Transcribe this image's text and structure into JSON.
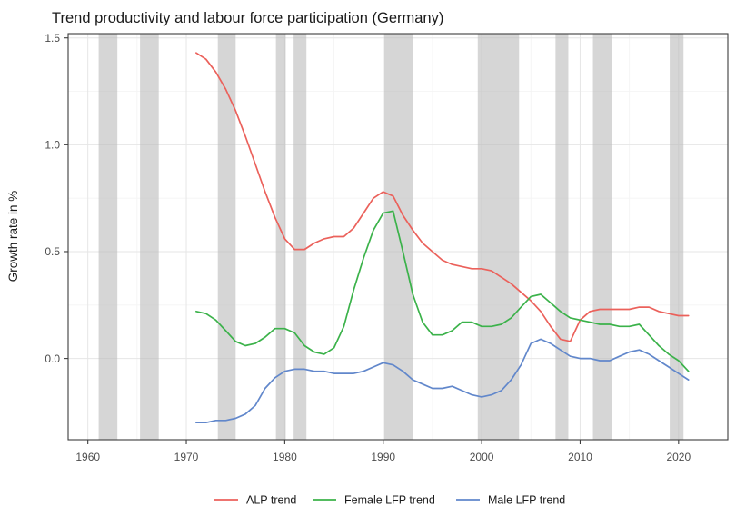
{
  "title": "Trend productivity and labour force participation (Germany)",
  "chart_data": {
    "type": "line",
    "title": "Trend productivity and labour force participation (Germany)",
    "xlabel": "",
    "ylabel": "Growth rate in %",
    "x_domain": [
      1958,
      2025
    ],
    "y_domain": [
      -0.38,
      1.52
    ],
    "x_ticks": [
      1960,
      1970,
      1980,
      1990,
      2000,
      2010,
      2020
    ],
    "x_tick_labels": [
      "1960",
      "1970",
      "1980",
      "1990",
      "2000",
      "2010",
      "2020"
    ],
    "x_minor_ticks": [
      1965,
      1975,
      1985,
      1995,
      2005,
      2015
    ],
    "y_ticks": [
      0.0,
      0.5,
      1.0,
      1.5
    ],
    "y_tick_labels": [
      "1.5",
      "1.0",
      "0.5",
      "0.0"
    ],
    "y_tick_values_for_labels": [
      1.5,
      1.0,
      0.5,
      0.0
    ],
    "y_minor_ticks": [
      -0.25,
      0.25,
      0.75,
      1.25
    ],
    "grid": "major+minor",
    "legend_position": "bottom",
    "x": [
      1971,
      1972,
      1973,
      1974,
      1975,
      1976,
      1977,
      1978,
      1979,
      1980,
      1981,
      1982,
      1983,
      1984,
      1985,
      1986,
      1987,
      1988,
      1989,
      1990,
      1991,
      1992,
      1993,
      1994,
      1995,
      1996,
      1997,
      1998,
      1999,
      2000,
      2001,
      2002,
      2003,
      2004,
      2005,
      2006,
      2007,
      2008,
      2009,
      2010,
      2011,
      2012,
      2013,
      2014,
      2015,
      2016,
      2017,
      2018,
      2019,
      2020,
      2021
    ],
    "series": [
      {
        "name": "ALP trend",
        "color": "#eb615b",
        "values": [
          1.43,
          1.4,
          1.34,
          1.26,
          1.16,
          1.04,
          0.91,
          0.78,
          0.66,
          0.56,
          0.51,
          0.51,
          0.54,
          0.56,
          0.57,
          0.57,
          0.61,
          0.68,
          0.75,
          0.78,
          0.76,
          0.67,
          0.6,
          0.54,
          0.5,
          0.46,
          0.44,
          0.43,
          0.42,
          0.42,
          0.41,
          0.38,
          0.35,
          0.31,
          0.27,
          0.22,
          0.15,
          0.09,
          0.08,
          0.18,
          0.22,
          0.23,
          0.23,
          0.23,
          0.23,
          0.24,
          0.24,
          0.22,
          0.21,
          0.2,
          0.2
        ]
      },
      {
        "name": "Female LFP trend",
        "color": "#3bb24a",
        "values": [
          0.22,
          0.21,
          0.18,
          0.13,
          0.08,
          0.06,
          0.07,
          0.1,
          0.14,
          0.14,
          0.12,
          0.06,
          0.03,
          0.02,
          0.05,
          0.15,
          0.32,
          0.47,
          0.6,
          0.68,
          0.69,
          0.5,
          0.3,
          0.17,
          0.11,
          0.11,
          0.13,
          0.17,
          0.17,
          0.15,
          0.15,
          0.16,
          0.19,
          0.24,
          0.29,
          0.3,
          0.26,
          0.22,
          0.19,
          0.18,
          0.17,
          0.16,
          0.16,
          0.15,
          0.15,
          0.16,
          0.11,
          0.06,
          0.02,
          -0.01,
          -0.06
        ]
      },
      {
        "name": "Male LFP trend",
        "color": "#6187cb",
        "values": [
          -0.3,
          -0.3,
          -0.29,
          -0.29,
          -0.28,
          -0.26,
          -0.22,
          -0.14,
          -0.09,
          -0.06,
          -0.05,
          -0.05,
          -0.06,
          -0.06,
          -0.07,
          -0.07,
          -0.07,
          -0.06,
          -0.04,
          -0.02,
          -0.03,
          -0.06,
          -0.1,
          -0.12,
          -0.14,
          -0.14,
          -0.13,
          -0.15,
          -0.17,
          -0.18,
          -0.17,
          -0.15,
          -0.1,
          -0.03,
          0.07,
          0.09,
          0.07,
          0.04,
          0.01,
          0.0,
          0.0,
          -0.01,
          -0.01,
          0.01,
          0.03,
          0.04,
          0.02,
          -0.01,
          -0.04,
          -0.07,
          -0.1
        ]
      }
    ],
    "recession_bands": [
      [
        1961.1,
        1963.0
      ],
      [
        1965.3,
        1967.2
      ],
      [
        1973.2,
        1975.0
      ],
      [
        1979.1,
        1980.1
      ],
      [
        1980.9,
        1982.2
      ],
      [
        1990.1,
        1993.0
      ],
      [
        1999.6,
        2003.8
      ],
      [
        2007.5,
        2008.8
      ],
      [
        2011.3,
        2013.2
      ],
      [
        2019.1,
        2020.5
      ]
    ],
    "band_color": "#bbbbbb",
    "colors": {
      "grid_major": "#e6e6e6",
      "grid_minor": "#f4f4f4",
      "axis_text": "#4d4d4d",
      "panel_border": "#3c3c3c"
    }
  }
}
